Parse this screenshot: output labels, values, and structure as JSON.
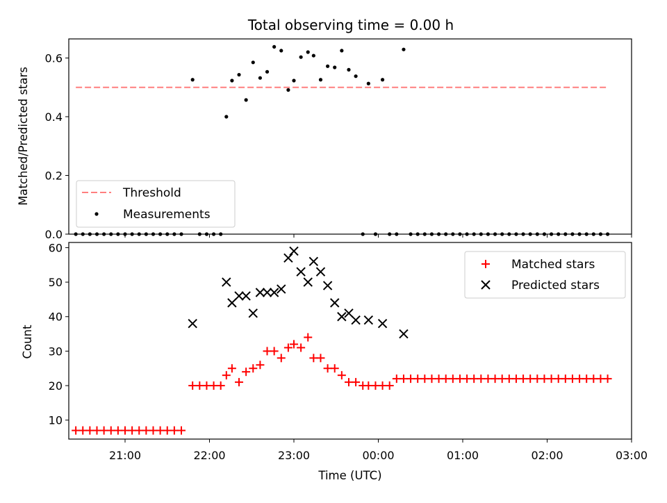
{
  "chart_data": [
    {
      "type": "scatter",
      "title": "Total observing time = 0.00 h",
      "xlabel": "",
      "ylabel": "Matched/Predicted stars",
      "ylim": [
        0.0,
        0.665
      ],
      "xlim": [
        "20:20",
        "03:00"
      ],
      "yticks": [
        "0.0",
        "0.2",
        "0.4",
        "0.6"
      ],
      "grid": false,
      "legend": {
        "placement": "lower-left",
        "entries": [
          "Threshold",
          "Measurements"
        ]
      },
      "threshold": {
        "name": "Threshold",
        "value": 0.5,
        "x_start": "20:25",
        "x_end": "02:43",
        "style": "dashed",
        "color": "#ff7f7f"
      },
      "series": [
        {
          "name": "Measurements",
          "color": "#000000",
          "marker": "dot",
          "points": [
            [
              "20:25",
              0
            ],
            [
              "20:30",
              0
            ],
            [
              "20:35",
              0
            ],
            [
              "20:40",
              0
            ],
            [
              "20:45",
              0
            ],
            [
              "20:50",
              0
            ],
            [
              "20:55",
              0
            ],
            [
              "21:00",
              0
            ],
            [
              "21:05",
              0
            ],
            [
              "21:10",
              0
            ],
            [
              "21:15",
              0
            ],
            [
              "21:20",
              0
            ],
            [
              "21:25",
              0
            ],
            [
              "21:30",
              0
            ],
            [
              "21:35",
              0
            ],
            [
              "21:40",
              0
            ],
            [
              "21:48",
              0.526
            ],
            [
              "21:53",
              0
            ],
            [
              "21:58",
              0
            ],
            [
              "22:03",
              0
            ],
            [
              "22:08",
              0
            ],
            [
              "22:12",
              0.4
            ],
            [
              "22:16",
              0.523
            ],
            [
              "22:21",
              0.543
            ],
            [
              "22:26",
              0.457
            ],
            [
              "22:31",
              0.585
            ],
            [
              "22:36",
              0.532
            ],
            [
              "22:41",
              0.553
            ],
            [
              "22:46",
              0.638
            ],
            [
              "22:51",
              0.625
            ],
            [
              "22:56",
              0.491
            ],
            [
              "23:00",
              0.523
            ],
            [
              "23:05",
              0.603
            ],
            [
              "23:10",
              0.62
            ],
            [
              "23:14",
              0.608
            ],
            [
              "23:19",
              0.526
            ],
            [
              "23:24",
              0.572
            ],
            [
              "23:29",
              0.568
            ],
            [
              "23:34",
              0.625
            ],
            [
              "23:39",
              0.56
            ],
            [
              "23:44",
              0.538
            ],
            [
              "23:49",
              0
            ],
            [
              "23:53",
              0.513
            ],
            [
              "23:58",
              0
            ],
            [
              "00:03",
              0.526
            ],
            [
              "00:08",
              0
            ],
            [
              "00:13",
              0
            ],
            [
              "00:18",
              0.629
            ],
            [
              "00:23",
              0
            ],
            [
              "00:28",
              0
            ],
            [
              "00:33",
              0
            ],
            [
              "00:38",
              0
            ],
            [
              "00:43",
              0
            ],
            [
              "00:48",
              0
            ],
            [
              "00:53",
              0
            ],
            [
              "00:58",
              0
            ],
            [
              "01:03",
              0
            ],
            [
              "01:08",
              0
            ],
            [
              "01:13",
              0
            ],
            [
              "01:18",
              0
            ],
            [
              "01:23",
              0
            ],
            [
              "01:28",
              0
            ],
            [
              "01:33",
              0
            ],
            [
              "01:38",
              0
            ],
            [
              "01:43",
              0
            ],
            [
              "01:48",
              0
            ],
            [
              "01:53",
              0
            ],
            [
              "01:58",
              0
            ],
            [
              "02:03",
              0
            ],
            [
              "02:08",
              0
            ],
            [
              "02:13",
              0
            ],
            [
              "02:18",
              0
            ],
            [
              "02:23",
              0
            ],
            [
              "02:28",
              0
            ],
            [
              "02:33",
              0
            ],
            [
              "02:38",
              0
            ],
            [
              "02:43",
              0
            ]
          ]
        }
      ]
    },
    {
      "type": "scatter",
      "title": "",
      "xlabel": "Time (UTC)",
      "ylabel": "Count",
      "ylim": [
        4.5,
        61.5
      ],
      "xlim": [
        "20:20",
        "03:00"
      ],
      "xticks": [
        "21:00",
        "22:00",
        "23:00",
        "00:00",
        "01:00",
        "02:00",
        "03:00"
      ],
      "yticks": [
        "10",
        "20",
        "30",
        "40",
        "50",
        "60"
      ],
      "grid": false,
      "legend": {
        "placement": "top-right",
        "entries": [
          "Matched stars",
          "Predicted stars"
        ]
      },
      "series": [
        {
          "name": "Matched stars",
          "color": "#ff0000",
          "marker": "plus",
          "points": [
            [
              "20:25",
              7
            ],
            [
              "20:30",
              7
            ],
            [
              "20:35",
              7
            ],
            [
              "20:40",
              7
            ],
            [
              "20:45",
              7
            ],
            [
              "20:50",
              7
            ],
            [
              "20:55",
              7
            ],
            [
              "21:00",
              7
            ],
            [
              "21:05",
              7
            ],
            [
              "21:10",
              7
            ],
            [
              "21:15",
              7
            ],
            [
              "21:20",
              7
            ],
            [
              "21:25",
              7
            ],
            [
              "21:30",
              7
            ],
            [
              "21:35",
              7
            ],
            [
              "21:40",
              7
            ],
            [
              "21:48",
              20
            ],
            [
              "21:53",
              20
            ],
            [
              "21:58",
              20
            ],
            [
              "22:03",
              20
            ],
            [
              "22:08",
              20
            ],
            [
              "22:12",
              23
            ],
            [
              "22:16",
              25
            ],
            [
              "22:21",
              21
            ],
            [
              "22:26",
              24
            ],
            [
              "22:31",
              25
            ],
            [
              "22:36",
              26
            ],
            [
              "22:41",
              30
            ],
            [
              "22:46",
              30
            ],
            [
              "22:51",
              28
            ],
            [
              "22:56",
              31
            ],
            [
              "23:00",
              32
            ],
            [
              "23:05",
              31
            ],
            [
              "23:10",
              34
            ],
            [
              "23:14",
              28
            ],
            [
              "23:19",
              28
            ],
            [
              "23:24",
              25
            ],
            [
              "23:29",
              25
            ],
            [
              "23:34",
              23
            ],
            [
              "23:39",
              21
            ],
            [
              "23:44",
              21
            ],
            [
              "23:49",
              20
            ],
            [
              "23:53",
              20
            ],
            [
              "23:58",
              20
            ],
            [
              "00:03",
              20
            ],
            [
              "00:08",
              20
            ],
            [
              "00:13",
              22
            ],
            [
              "00:18",
              22
            ],
            [
              "00:23",
              22
            ],
            [
              "00:28",
              22
            ],
            [
              "00:33",
              22
            ],
            [
              "00:38",
              22
            ],
            [
              "00:43",
              22
            ],
            [
              "00:48",
              22
            ],
            [
              "00:53",
              22
            ],
            [
              "00:58",
              22
            ],
            [
              "01:03",
              22
            ],
            [
              "01:08",
              22
            ],
            [
              "01:13",
              22
            ],
            [
              "01:18",
              22
            ],
            [
              "01:23",
              22
            ],
            [
              "01:28",
              22
            ],
            [
              "01:33",
              22
            ],
            [
              "01:38",
              22
            ],
            [
              "01:43",
              22
            ],
            [
              "01:48",
              22
            ],
            [
              "01:53",
              22
            ],
            [
              "01:58",
              22
            ],
            [
              "02:03",
              22
            ],
            [
              "02:08",
              22
            ],
            [
              "02:13",
              22
            ],
            [
              "02:18",
              22
            ],
            [
              "02:23",
              22
            ],
            [
              "02:28",
              22
            ],
            [
              "02:33",
              22
            ],
            [
              "02:38",
              22
            ],
            [
              "02:43",
              22
            ]
          ]
        },
        {
          "name": "Predicted stars",
          "color": "#000000",
          "marker": "x",
          "points": [
            [
              "21:48",
              38
            ],
            [
              "22:12",
              50
            ],
            [
              "22:16",
              44
            ],
            [
              "22:21",
              46
            ],
            [
              "22:26",
              46
            ],
            [
              "22:31",
              41
            ],
            [
              "22:36",
              47
            ],
            [
              "22:41",
              47
            ],
            [
              "22:46",
              47
            ],
            [
              "22:51",
              48
            ],
            [
              "22:56",
              57
            ],
            [
              "23:00",
              59
            ],
            [
              "23:05",
              53
            ],
            [
              "23:10",
              50
            ],
            [
              "23:14",
              56
            ],
            [
              "23:19",
              53
            ],
            [
              "23:24",
              49
            ],
            [
              "23:29",
              44
            ],
            [
              "23:34",
              40
            ],
            [
              "23:39",
              41
            ],
            [
              "23:44",
              39
            ],
            [
              "23:53",
              39
            ],
            [
              "00:03",
              38
            ],
            [
              "00:18",
              35
            ]
          ]
        }
      ]
    }
  ]
}
